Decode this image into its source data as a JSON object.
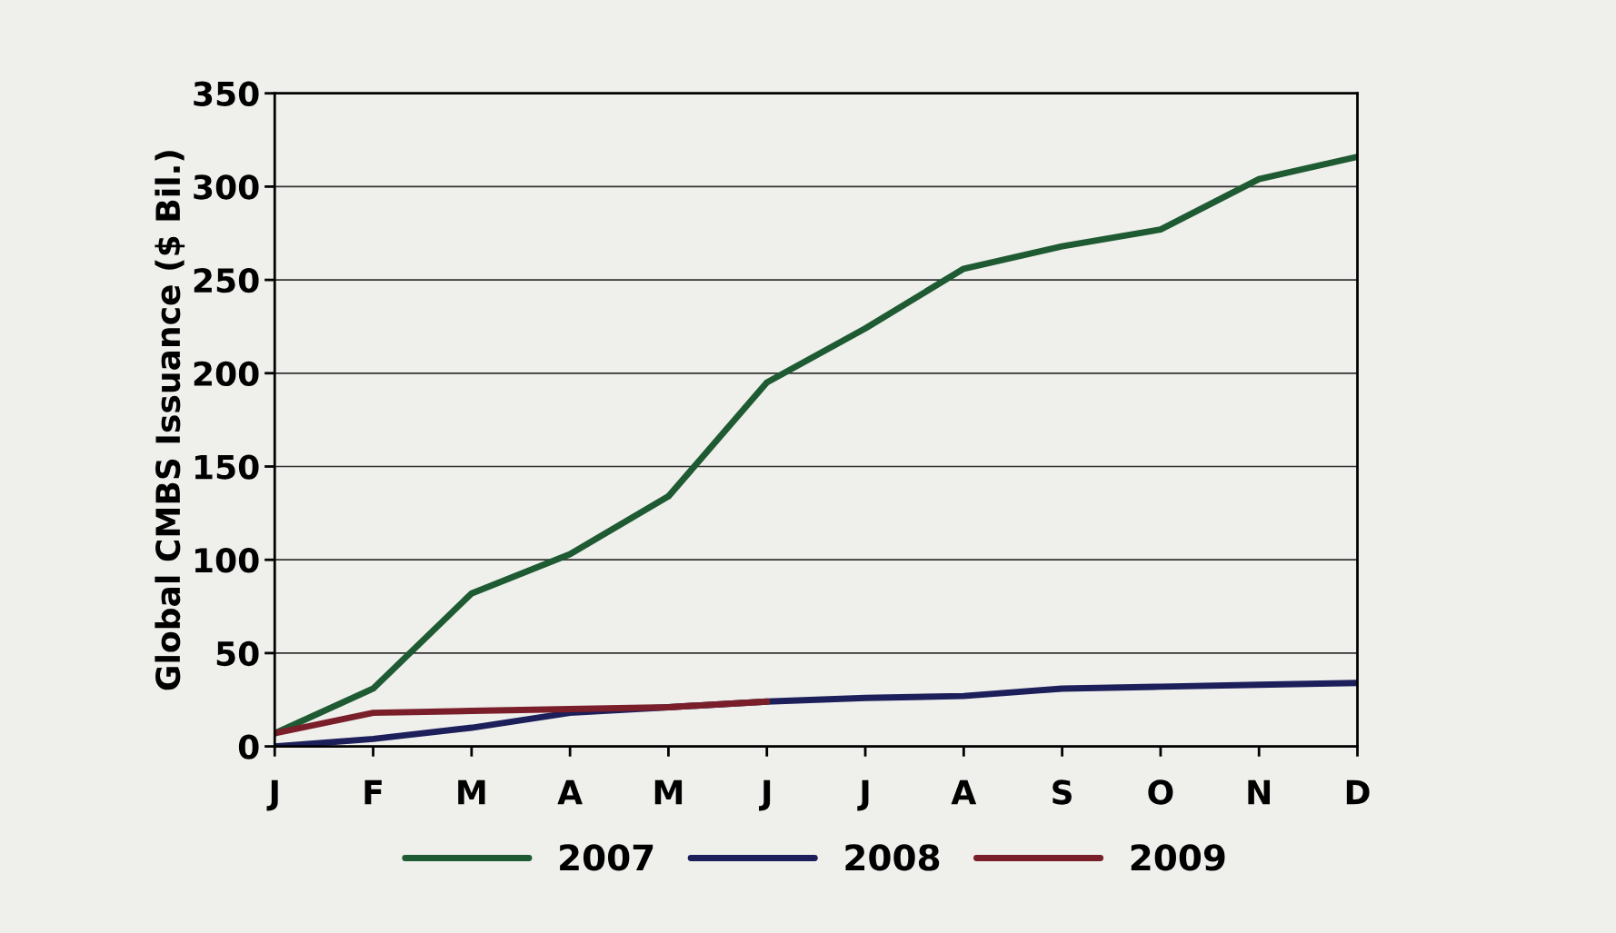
{
  "chart_data": {
    "type": "line",
    "ylabel": "Global CMBS Issuance ($ Bil.)",
    "categories": [
      "J",
      "F",
      "M",
      "A",
      "M",
      "J",
      "J",
      "A",
      "S",
      "O",
      "N",
      "D"
    ],
    "series": [
      {
        "name": "2007",
        "color": "#1e5a32",
        "values": [
          7,
          31,
          82,
          103,
          134,
          195,
          224,
          256,
          268,
          277,
          304,
          316
        ]
      },
      {
        "name": "2008",
        "color": "#1c1f5a",
        "values": [
          0,
          4,
          10,
          18,
          21,
          24,
          26,
          27,
          31,
          32,
          33,
          34
        ]
      },
      {
        "name": "2009",
        "color": "#7a1f2a",
        "values": [
          7,
          18,
          19,
          20,
          21,
          24,
          null,
          null,
          null,
          null,
          null,
          null
        ]
      }
    ],
    "ylim": [
      0,
      350
    ],
    "yticks": [
      0,
      50,
      100,
      150,
      200,
      250,
      300,
      350
    ],
    "grid": "y",
    "legend": "bottom",
    "marker": "none",
    "line_style": "solid"
  }
}
